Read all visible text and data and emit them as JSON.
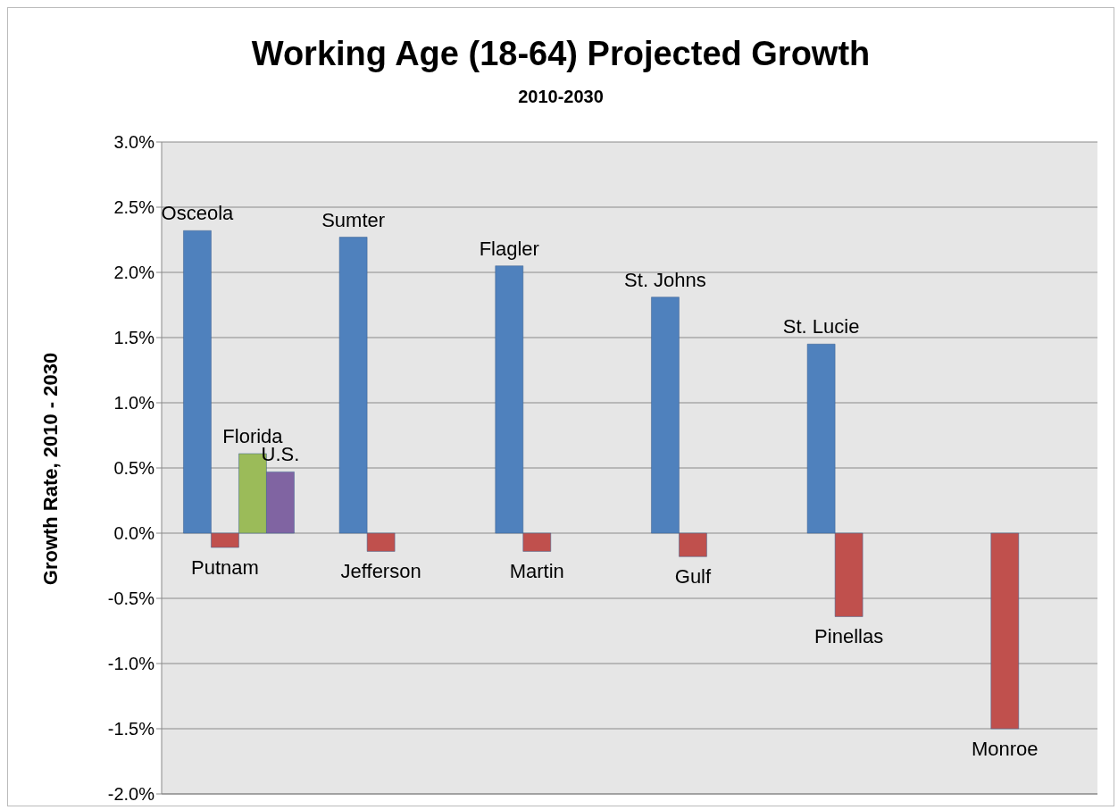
{
  "chart_data": {
    "type": "bar",
    "title": "Working Age (18-64) Projected Growth",
    "subtitle": "2010-2030",
    "ylabel": "Growth Rate, 2010 - 2030",
    "categories": [
      null,
      null,
      null,
      null,
      null,
      null
    ],
    "series": [
      {
        "color": "#4f81bd",
        "values": [
          2.32,
          2.27,
          2.05,
          1.81,
          1.45,
          null
        ],
        "value_labels": [
          "Osceola",
          "Sumter",
          "Flagler",
          "St. Johns",
          "St. Lucie",
          null
        ]
      },
      {
        "color": "#c0504d",
        "values": [
          -0.11,
          -0.14,
          -0.14,
          -0.18,
          -0.64,
          -1.5
        ],
        "value_labels": [
          "Putnam",
          "Jefferson",
          "Martin",
          "Gulf",
          "Pinellas",
          "Monroe"
        ]
      },
      {
        "color": "#9bbb59",
        "values": [
          0.61,
          null,
          null,
          null,
          null,
          null
        ],
        "value_labels": [
          "Florida",
          null,
          null,
          null,
          null,
          null
        ]
      },
      {
        "color": "#8064a2",
        "values": [
          0.47,
          null,
          null,
          null,
          null,
          null
        ],
        "value_labels": [
          "U.S.",
          null,
          null,
          null,
          null,
          null
        ]
      }
    ],
    "ylim": [
      -2,
      3
    ],
    "yticks": [
      {
        "value": -2,
        "label": "-2.0%"
      },
      {
        "value": -1.5,
        "label": "-1.5%"
      },
      {
        "value": -1,
        "label": "-1.0%"
      },
      {
        "value": -0.5,
        "label": "-0.5%"
      },
      {
        "value": 0,
        "label": "0.0%"
      },
      {
        "value": 0.5,
        "label": "0.5%"
      },
      {
        "value": 1,
        "label": "1.0%"
      },
      {
        "value": 1.5,
        "label": "1.5%"
      },
      {
        "value": 2,
        "label": "2.0%"
      },
      {
        "value": 2.5,
        "label": "2.5%"
      },
      {
        "value": 3,
        "label": "3.0%"
      }
    ],
    "grid": "y",
    "legend": false
  }
}
